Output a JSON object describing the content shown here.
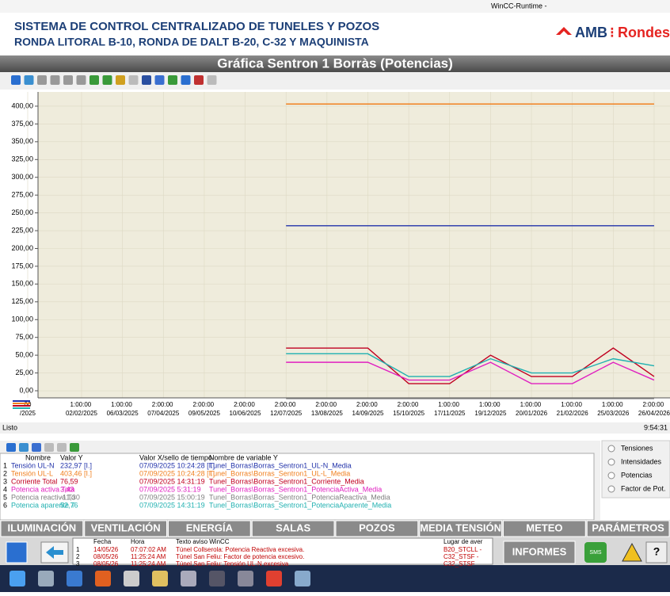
{
  "window": {
    "title": "WinCC-Runtime -"
  },
  "header": {
    "line1": "SISTEMA DE CONTROL CENTRALIZADO DE TUNELES Y POZOS",
    "line2": "RONDA LITORAL B-10, RONDA DE DALT B-20, C-32 Y MAQUINISTA",
    "logo_left": "AMB",
    "logo_right": "Rondes"
  },
  "chart_data": {
    "type": "line",
    "title": "Gráfica Sentron 1 Borràs (Potencias)",
    "x": [
      ":00 /2025",
      "1:00:00 02/02/2025",
      "1:00:00 06/03/2025",
      "2:00:00 07/04/2025",
      "2:00:00 09/05/2025",
      "2:00:00 10/06/2025",
      "2:00:00 12/07/2025",
      "2:00:00 13/08/2025",
      "2:00:00 14/09/2025",
      "2:00:00 15/10/2025",
      "1:00:00 17/11/2025",
      "1:00:00 19/12/2025",
      "1:00:00 20/01/2026",
      "1:00:00 21/02/2026",
      "1:00:00 25/03/2026",
      "2:00:00 26/04/2026"
    ],
    "series": [
      {
        "name": "Tensión UL-N",
        "color": "#2233aa",
        "values": [
          null,
          null,
          null,
          null,
          null,
          null,
          232,
          232,
          232,
          232,
          232,
          232,
          232,
          232,
          232,
          232
        ]
      },
      {
        "name": "Tensión UL-L",
        "color": "#f08020",
        "values": [
          null,
          null,
          null,
          null,
          null,
          null,
          403,
          403,
          403,
          403,
          403,
          403,
          403,
          403,
          403,
          403
        ]
      },
      {
        "name": "Corriente Total",
        "color": "#c00020",
        "values": [
          null,
          null,
          null,
          null,
          null,
          null,
          60,
          60,
          60,
          10,
          10,
          50,
          20,
          20,
          60,
          20
        ]
      },
      {
        "name": "Potencia activa Tota",
        "color": "#e020c0",
        "values": [
          null,
          null,
          null,
          null,
          null,
          null,
          40,
          40,
          40,
          15,
          15,
          40,
          10,
          10,
          40,
          15
        ]
      },
      {
        "name": "Potencia reactiva To",
        "color": "#808080",
        "values": [
          null,
          null,
          null,
          null,
          null,
          null,
          -11,
          -11,
          -11,
          -11,
          -11,
          -11,
          -11,
          -11,
          -11,
          -11
        ]
      },
      {
        "name": "Potencia aparente T",
        "color": "#20b0b0",
        "values": [
          null,
          null,
          null,
          null,
          null,
          null,
          52,
          52,
          52,
          20,
          20,
          45,
          25,
          25,
          45,
          35
        ]
      }
    ],
    "ylim": [
      -10,
      420
    ],
    "yticks": [
      {
        "value": 400,
        "label": "400,00"
      },
      {
        "value": 375,
        "label": "375,00"
      },
      {
        "value": 350,
        "label": "350,00"
      },
      {
        "value": 325,
        "label": "325,00"
      },
      {
        "value": 300,
        "label": "300,00"
      },
      {
        "value": 275,
        "label": "275,00"
      },
      {
        "value": 250,
        "label": "250,00"
      },
      {
        "value": 225,
        "label": "225,00"
      },
      {
        "value": 200,
        "label": "200,00"
      },
      {
        "value": 175,
        "label": "175,00"
      },
      {
        "value": 150,
        "label": "150,00"
      },
      {
        "value": 125,
        "label": "125,00"
      },
      {
        "value": 100,
        "label": "100,00"
      },
      {
        "value": 75,
        "label": "75,00"
      },
      {
        "value": 50,
        "label": "50,00"
      },
      {
        "value": 25,
        "label": "25,00"
      },
      {
        "value": 0,
        "label": "0,00"
      }
    ],
    "grid": true
  },
  "status": {
    "text": "Listo",
    "time": "9:54:31"
  },
  "values_table": {
    "headers": [
      "Nombre",
      "Valor Y",
      "Valor X/sello de tiempo",
      "Nombre de variable Y"
    ],
    "rows": [
      {
        "n": "1",
        "value": "232,97 [I.]",
        "time": "07/09/2025 10:24:28 [I.]",
        "variable": "Tunel_Borras\\Borras_Sentron1_UL-N_Media"
      },
      {
        "n": "2",
        "value": "403,46 [I.]",
        "time": "07/09/2025 10:24:28 [I.]",
        "variable": "Tunel_Borras\\Borras_Sentron1_UL-L_Media"
      },
      {
        "n": "3",
        "value": "76,59",
        "time": "07/09/2025 14:31:19",
        "variable": "Tunel_Borras\\Borras_Sentron1_Corriente_Media"
      },
      {
        "n": "4",
        "value": "3,43",
        "time": "07/09/2025 5:31:19",
        "variable": "Tunel_Borras\\Borras_Sentron1_PotenciaActiva_Media"
      },
      {
        "n": "5",
        "value": "-11,30",
        "time": "07/09/2025 15:00:19",
        "variable": "Tunel_Borras\\Borras_Sentron1_PotenciaReactiva_Media"
      },
      {
        "n": "6",
        "value": "52,76",
        "time": "07/09/2025 14:31:19",
        "variable": "Tunel_Borras\\Borras_Sentron1_PotenciaAparente_Media"
      }
    ]
  },
  "view_options": [
    "Tensiones",
    "Intensidades",
    "Potencias",
    "Factor de Pot."
  ],
  "nav": [
    "ILUMINACIÓN",
    "VENTILACIÓN",
    "ENERGÍA",
    "SALAS",
    "POZOS",
    "MEDIA TENSIÓN",
    "METEO",
    "PARÁMETROS"
  ],
  "alarms": {
    "headers": [
      "Fecha",
      "Hora",
      "Texto aviso WinCC",
      "Lugar de aver"
    ],
    "rows": [
      {
        "n": "1",
        "date": "14/05/26",
        "time": "07:07:02 AM",
        "text": "Túnel Collserola:   Potencia Reactiva excesiva.",
        "place": "B20_STCLL -"
      },
      {
        "n": "2",
        "date": "08/05/26",
        "time": "11:25:24 AM",
        "text": "Túnel San Feliu:   Factor de potencia excesivo.",
        "place": "C32_STSF -"
      },
      {
        "n": "3",
        "date": "08/05/26",
        "time": "11:25:24 AM",
        "text": "Túnel San Feliu:   Tensión UL-N excesiva",
        "place": "C32_STSF"
      }
    ]
  },
  "buttons": {
    "informes": "INFORMES",
    "sms": "SMS",
    "help": "?"
  }
}
